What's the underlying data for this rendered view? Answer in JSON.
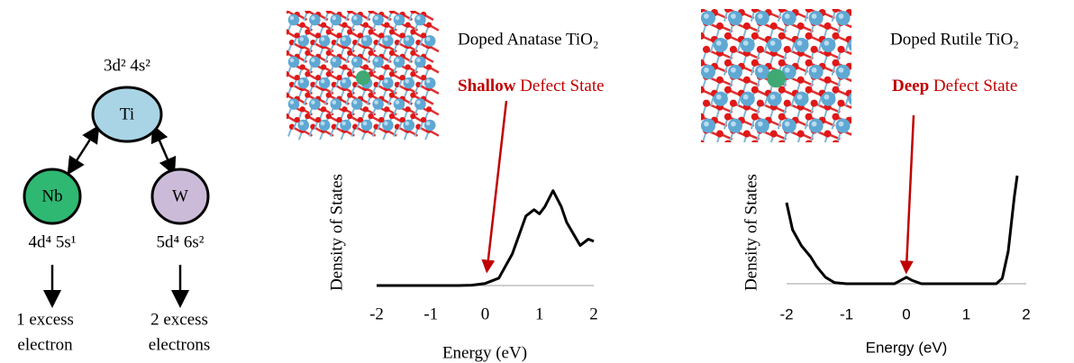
{
  "diagram": {
    "nodes": [
      {
        "label": "Ti",
        "configuration": "3d² 4s²"
      },
      {
        "label": "Nb",
        "configuration": "4d⁴ 5s¹",
        "result": [
          "1 excess",
          "electron"
        ]
      },
      {
        "label": "W",
        "configuration": "5d⁴ 6s²",
        "result": [
          "2 excess",
          "electrons"
        ]
      }
    ]
  },
  "chart_data": [
    {
      "type": "line",
      "title": "Doped Anatase TiO₂",
      "annotation": {
        "emphasis": "Shallow",
        "text": "Defect State"
      },
      "x_label": "Energy (eV)",
      "y_label": "Density of States",
      "xlim": [
        -2,
        2
      ],
      "xticks": [
        -2,
        -1,
        0,
        1,
        2
      ],
      "ylim": [
        0,
        1
      ],
      "x": [
        -2,
        -1.5,
        -1,
        -0.5,
        -0.25,
        0,
        0.25,
        0.5,
        0.75,
        0.9,
        1.0,
        1.1,
        1.25,
        1.4,
        1.5,
        1.75,
        1.9,
        2.0
      ],
      "series": [
        {
          "name": "Density of States",
          "color": "#000000",
          "values": [
            0,
            0,
            0,
            0,
            0.003,
            0.02,
            0.07,
            0.3,
            0.66,
            0.72,
            0.68,
            0.75,
            0.9,
            0.75,
            0.6,
            0.38,
            0.44,
            0.42
          ]
        }
      ]
    },
    {
      "type": "line",
      "title": "Doped Rutile TiO₂",
      "annotation": {
        "emphasis": "Deep",
        "text": "Defect State"
      },
      "x_label": "Energy (eV)",
      "y_label": "Density of States",
      "xlim": [
        -2,
        2
      ],
      "xticks": [
        -2,
        -1,
        0,
        1,
        2
      ],
      "ylim": [
        0,
        1
      ],
      "x": [
        -2,
        -1.9,
        -1.75,
        -1.6,
        -1.5,
        -1.35,
        -1.2,
        -1,
        -0.5,
        -0.2,
        -0.1,
        0,
        0.1,
        0.25,
        0.5,
        1,
        1.5,
        1.6,
        1.7,
        1.8,
        1.85
      ],
      "series": [
        {
          "name": "Density of States",
          "color": "#000000",
          "values": [
            0.75,
            0.5,
            0.35,
            0.25,
            0.16,
            0.06,
            0.01,
            0,
            0,
            0,
            0.03,
            0.06,
            0.03,
            0,
            0,
            0,
            0,
            0.05,
            0.3,
            0.8,
            1.0
          ]
        }
      ]
    }
  ]
}
